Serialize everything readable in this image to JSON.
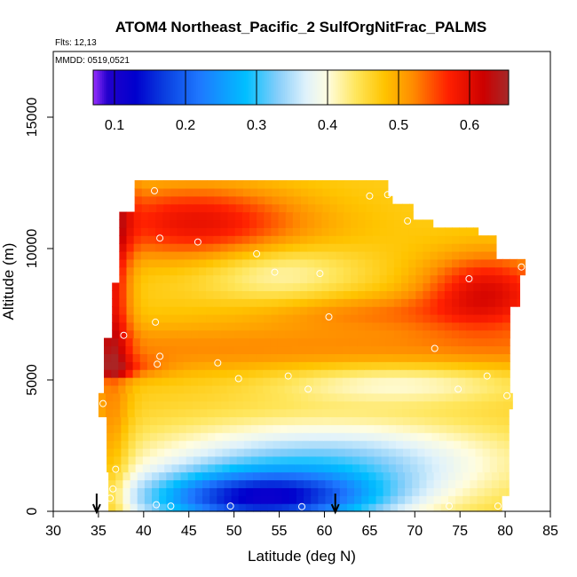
{
  "chart_data": {
    "type": "heatmap",
    "title": "ATOM4 Northeast_Pacific_2 SulfOrgNitFrac_PALMS",
    "flights_text": "Flts: 12,13",
    "dates_text": "MMDD: 0519,0521",
    "xlabel": "Latitude (deg N)",
    "ylabel": "Altitude (m)",
    "xlim": [
      30,
      85
    ],
    "ylim": [
      0,
      17500
    ],
    "x_ticks": [
      30,
      35,
      40,
      45,
      50,
      55,
      60,
      65,
      70,
      75,
      80,
      85
    ],
    "x_tick_labels": [
      "30",
      "35",
      "40",
      "45",
      "50",
      "55",
      "60",
      "65",
      "70",
      "75",
      "80",
      "85"
    ],
    "y_ticks": [
      0,
      5000,
      10000,
      15000
    ],
    "y_tick_labels": [
      "0",
      "5000",
      "10000",
      "15000"
    ],
    "colorbar": {
      "range": [
        0.07,
        0.655
      ],
      "ticks": [
        0.1,
        0.2,
        0.3,
        0.4,
        0.5,
        0.6
      ],
      "tick_labels": [
        "0.1",
        "0.2",
        "0.3",
        "0.4",
        "0.5",
        "0.6"
      ],
      "stops": [
        {
          "v": 0.07,
          "color": "#9b30ff"
        },
        {
          "v": 0.09,
          "color": "#2200cc"
        },
        {
          "v": 0.13,
          "color": "#0000cd"
        },
        {
          "v": 0.17,
          "color": "#0a3ee0"
        },
        {
          "v": 0.22,
          "color": "#1e78ff"
        },
        {
          "v": 0.285,
          "color": "#00bfff"
        },
        {
          "v": 0.33,
          "color": "#87cefa"
        },
        {
          "v": 0.37,
          "color": "#e0f2fb"
        },
        {
          "v": 0.4,
          "color": "#fffde0"
        },
        {
          "v": 0.44,
          "color": "#ffe65c"
        },
        {
          "v": 0.48,
          "color": "#ffc400"
        },
        {
          "v": 0.52,
          "color": "#ff8c00"
        },
        {
          "v": 0.57,
          "color": "#ff2000"
        },
        {
          "v": 0.62,
          "color": "#cc0000"
        },
        {
          "v": 0.655,
          "color": "#a52a2a"
        }
      ]
    },
    "flight_markers_lat": [
      34.8,
      61.2
    ],
    "sample_points": [
      {
        "lat": 41.2,
        "alt": 12200
      },
      {
        "lat": 41.8,
        "alt": 10400
      },
      {
        "lat": 46.0,
        "alt": 10250
      },
      {
        "lat": 52.5,
        "alt": 9800
      },
      {
        "lat": 54.5,
        "alt": 9100
      },
      {
        "lat": 59.5,
        "alt": 9050
      },
      {
        "lat": 65.0,
        "alt": 12000
      },
      {
        "lat": 67.0,
        "alt": 12050
      },
      {
        "lat": 69.2,
        "alt": 11050
      },
      {
        "lat": 76.0,
        "alt": 8850
      },
      {
        "lat": 81.8,
        "alt": 9300
      },
      {
        "lat": 60.5,
        "alt": 7400
      },
      {
        "lat": 37.8,
        "alt": 6700
      },
      {
        "lat": 41.3,
        "alt": 7200
      },
      {
        "lat": 41.8,
        "alt": 5900
      },
      {
        "lat": 41.5,
        "alt": 5600
      },
      {
        "lat": 48.2,
        "alt": 5650
      },
      {
        "lat": 50.5,
        "alt": 5050
      },
      {
        "lat": 56.0,
        "alt": 5150
      },
      {
        "lat": 58.2,
        "alt": 4650
      },
      {
        "lat": 72.2,
        "alt": 6200
      },
      {
        "lat": 74.8,
        "alt": 4650
      },
      {
        "lat": 78.0,
        "alt": 5150
      },
      {
        "lat": 80.2,
        "alt": 4400
      },
      {
        "lat": 35.5,
        "alt": 4100
      },
      {
        "lat": 36.9,
        "alt": 1600
      },
      {
        "lat": 36.6,
        "alt": 850
      },
      {
        "lat": 36.3,
        "alt": 500
      },
      {
        "lat": 41.4,
        "alt": 250
      },
      {
        "lat": 43.0,
        "alt": 200
      },
      {
        "lat": 49.6,
        "alt": 200
      },
      {
        "lat": 57.5,
        "alt": 180
      },
      {
        "lat": 73.8,
        "alt": 200
      },
      {
        "lat": 79.2,
        "alt": 200
      }
    ]
  }
}
